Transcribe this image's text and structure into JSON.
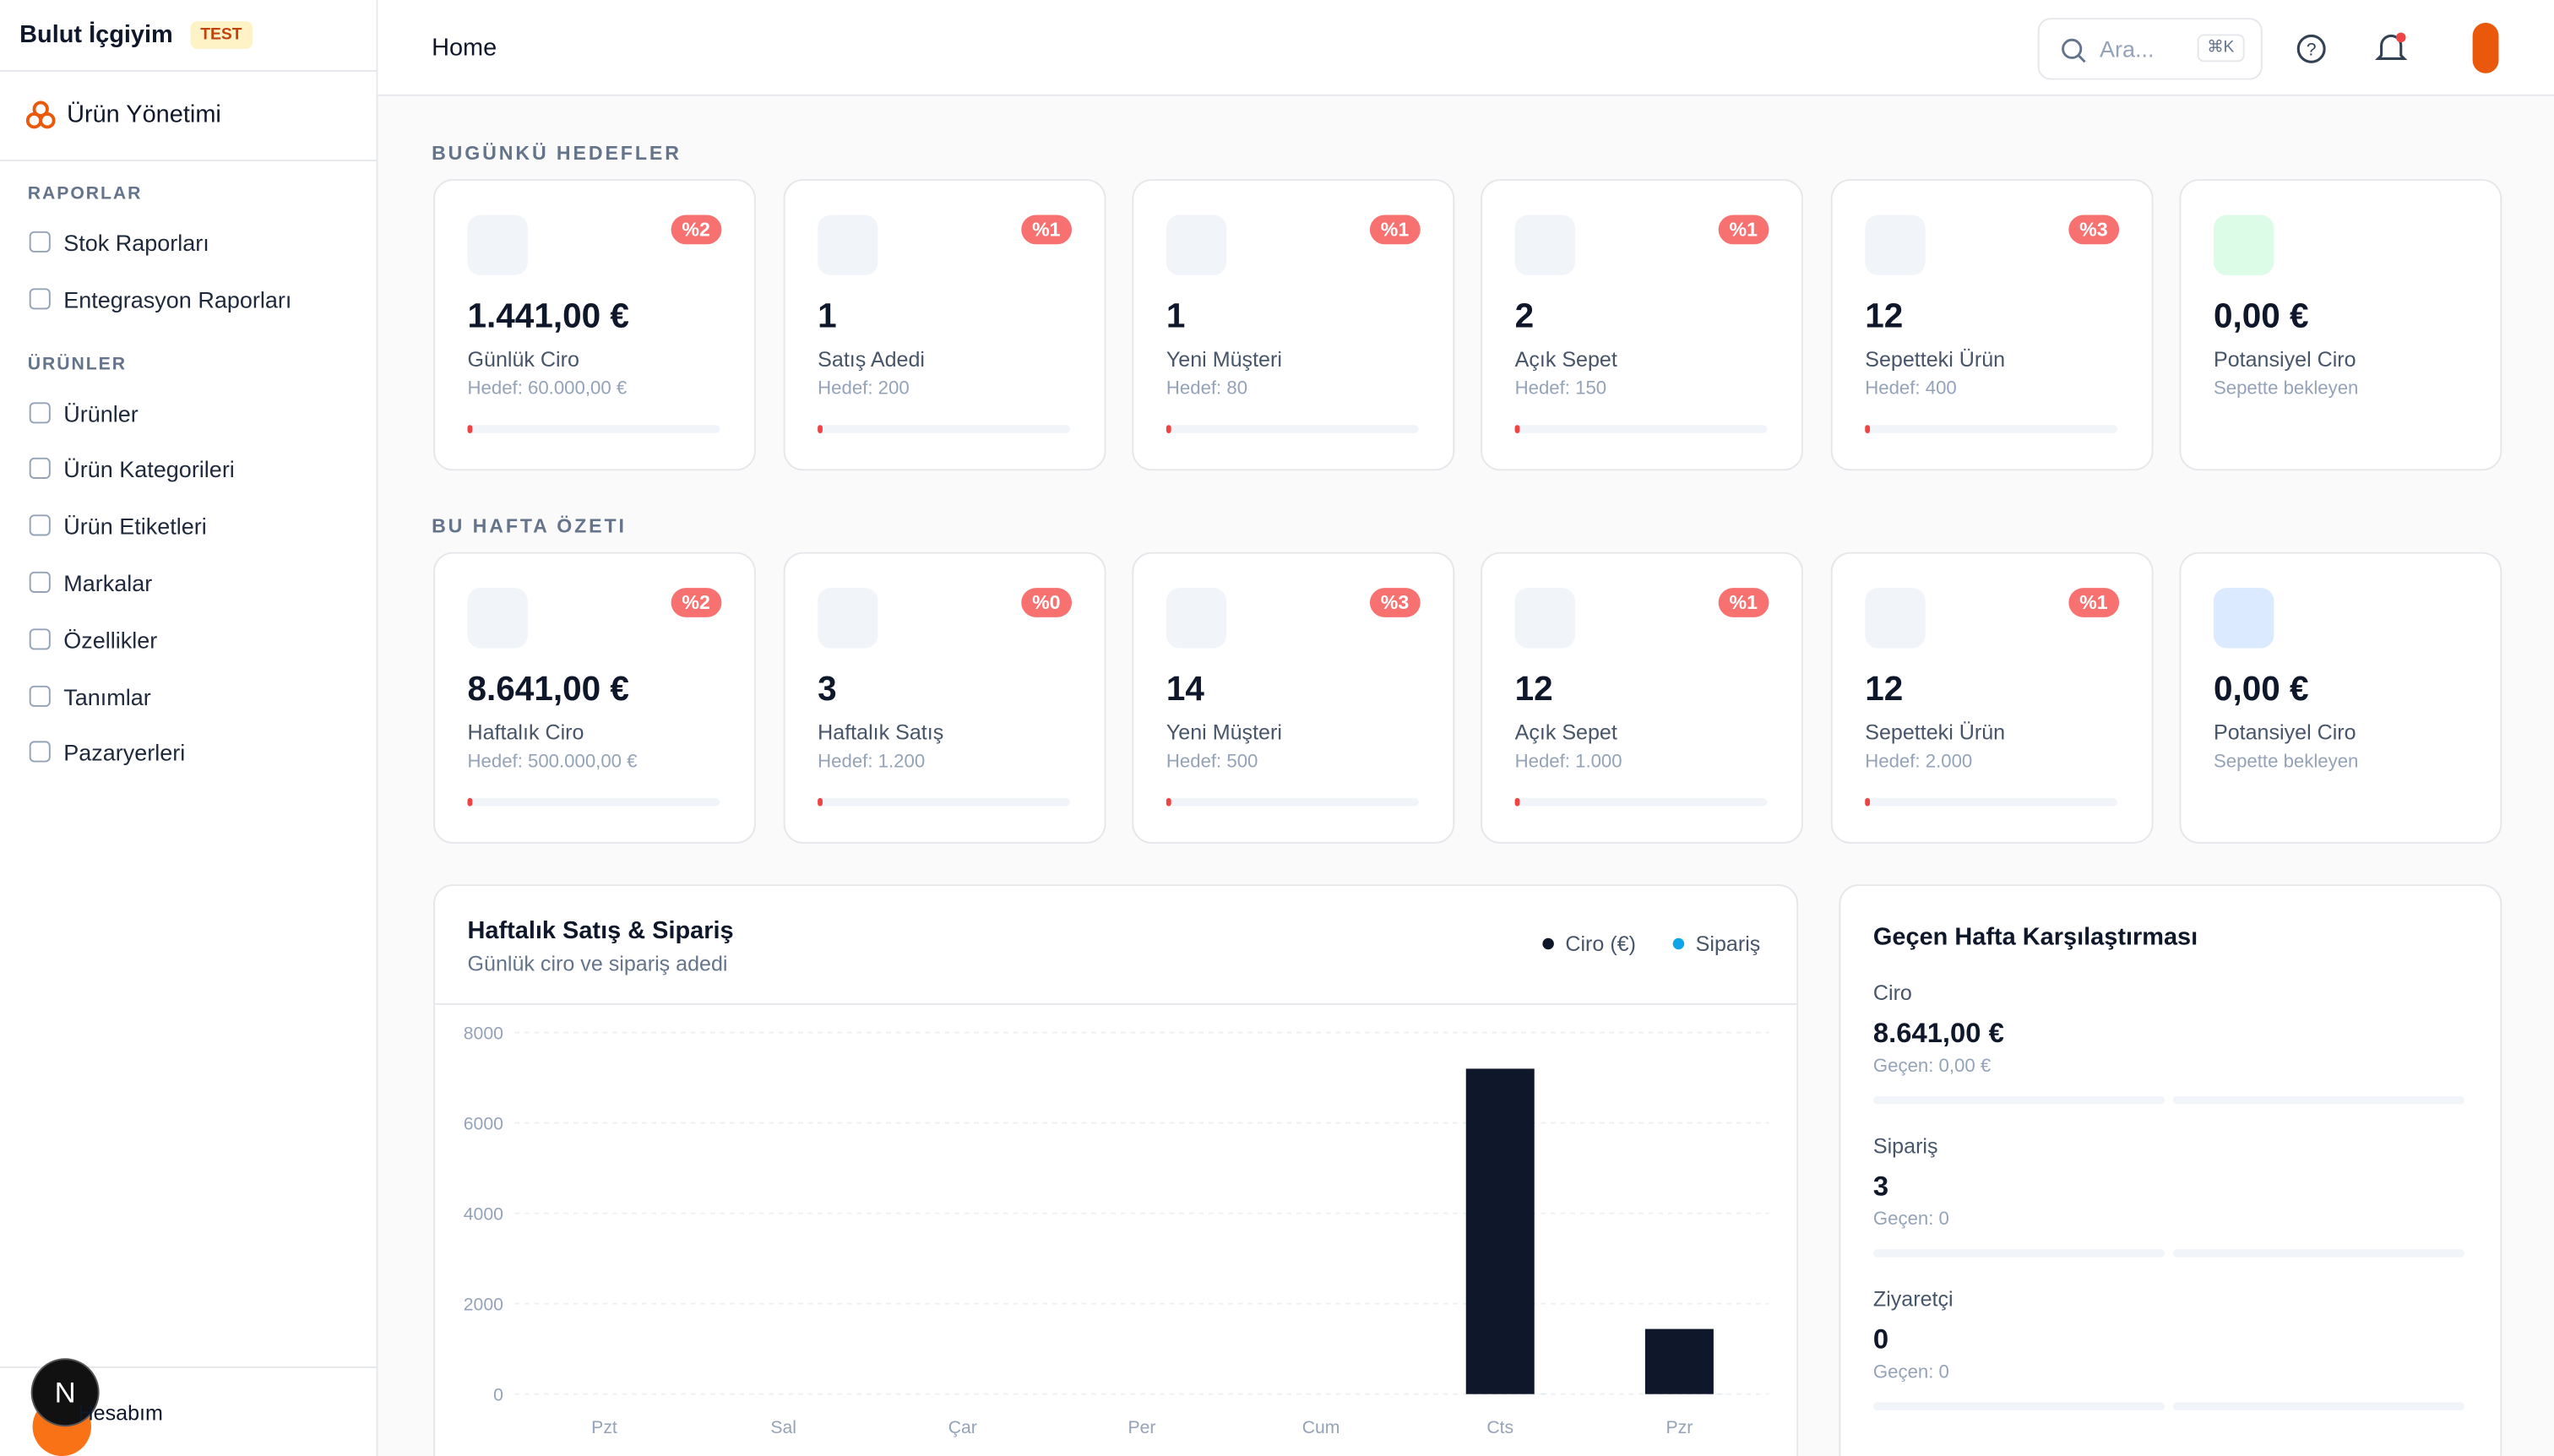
{
  "sidebar": {
    "brand": "Bulut İçgiyim",
    "badge": "TEST",
    "module": "Ürün Yönetimi",
    "sections": [
      {
        "title": "RAPORLAR",
        "items": [
          "Stok Raporları",
          "Entegrasyon Raporları"
        ]
      },
      {
        "title": "ÜRÜNLER",
        "items": [
          "Ürünler",
          "Ürün Kategorileri",
          "Ürün Etiketleri",
          "Markalar",
          "Özellikler",
          "Tanımlar",
          "Pazaryerleri"
        ]
      }
    ],
    "account": "Hesabım",
    "dev_badge": "N"
  },
  "header": {
    "title": "Home",
    "search": "Ara...",
    "shortcut": "⌘K"
  },
  "today": {
    "title": "BUGÜNKÜ HEDEFLER",
    "cards": [
      {
        "badge": "%2",
        "value": "1.441,00 €",
        "label": "Günlük Ciro",
        "sub": "Hedef: 60.000,00 €"
      },
      {
        "badge": "%1",
        "value": "1",
        "label": "Satış Adedi",
        "sub": "Hedef: 200"
      },
      {
        "badge": "%1",
        "value": "1",
        "label": "Yeni Müşteri",
        "sub": "Hedef: 80"
      },
      {
        "badge": "%1",
        "value": "2",
        "label": "Açık Sepet",
        "sub": "Hedef: 150"
      },
      {
        "badge": "%3",
        "value": "12",
        "label": "Sepetteki Ürün",
        "sub": "Hedef: 400"
      },
      {
        "value": "0,00 €",
        "label": "Potansiyel Ciro",
        "sub": "Sepette bekleyen"
      }
    ]
  },
  "week": {
    "title": "BU HAFTA ÖZETI",
    "cards": [
      {
        "badge": "%2",
        "value": "8.641,00 €",
        "label": "Haftalık Ciro",
        "sub": "Hedef: 500.000,00 €"
      },
      {
        "badge": "%0",
        "value": "3",
        "label": "Haftalık Satış",
        "sub": "Hedef: 1.200"
      },
      {
        "badge": "%3",
        "value": "14",
        "label": "Yeni Müşteri",
        "sub": "Hedef: 500"
      },
      {
        "badge": "%1",
        "value": "12",
        "label": "Açık Sepet",
        "sub": "Hedef: 1.000"
      },
      {
        "badge": "%1",
        "value": "12",
        "label": "Sepetteki Ürün",
        "sub": "Hedef: 2.000"
      },
      {
        "value": "0,00 €",
        "label": "Potansiyel Ciro",
        "sub": "Sepette bekleyen"
      }
    ]
  },
  "chart_data": {
    "type": "bar",
    "title": "Haftalık Satış & Sipariş",
    "subtitle": "Günlük ciro ve sipariş adedi",
    "categories": [
      "Pzt",
      "Sal",
      "Çar",
      "Per",
      "Cum",
      "Cts",
      "Pzr"
    ],
    "series": [
      {
        "name": "Ciro (€)",
        "color": "#0f172a",
        "values": [
          0,
          0,
          0,
          0,
          0,
          7200,
          1441
        ]
      },
      {
        "name": "Sipariş",
        "color": "#0ea5e9",
        "values": [
          0,
          0,
          0,
          0,
          0,
          2,
          1
        ]
      }
    ],
    "ylim": [
      0,
      8000
    ],
    "yticks": [
      0,
      2000,
      4000,
      6000,
      8000
    ],
    "grid": true,
    "legend": "top-right"
  },
  "comparison": {
    "title": "Geçen Hafta Karşılaştırması",
    "items": [
      {
        "label": "Ciro",
        "value": "8.641,00 €",
        "previous": "Geçen: 0,00 €"
      },
      {
        "label": "Sipariş",
        "value": "3",
        "previous": "Geçen: 0"
      },
      {
        "label": "Ziyaretçi",
        "value": "0",
        "previous": "Geçen: 0"
      }
    ]
  }
}
